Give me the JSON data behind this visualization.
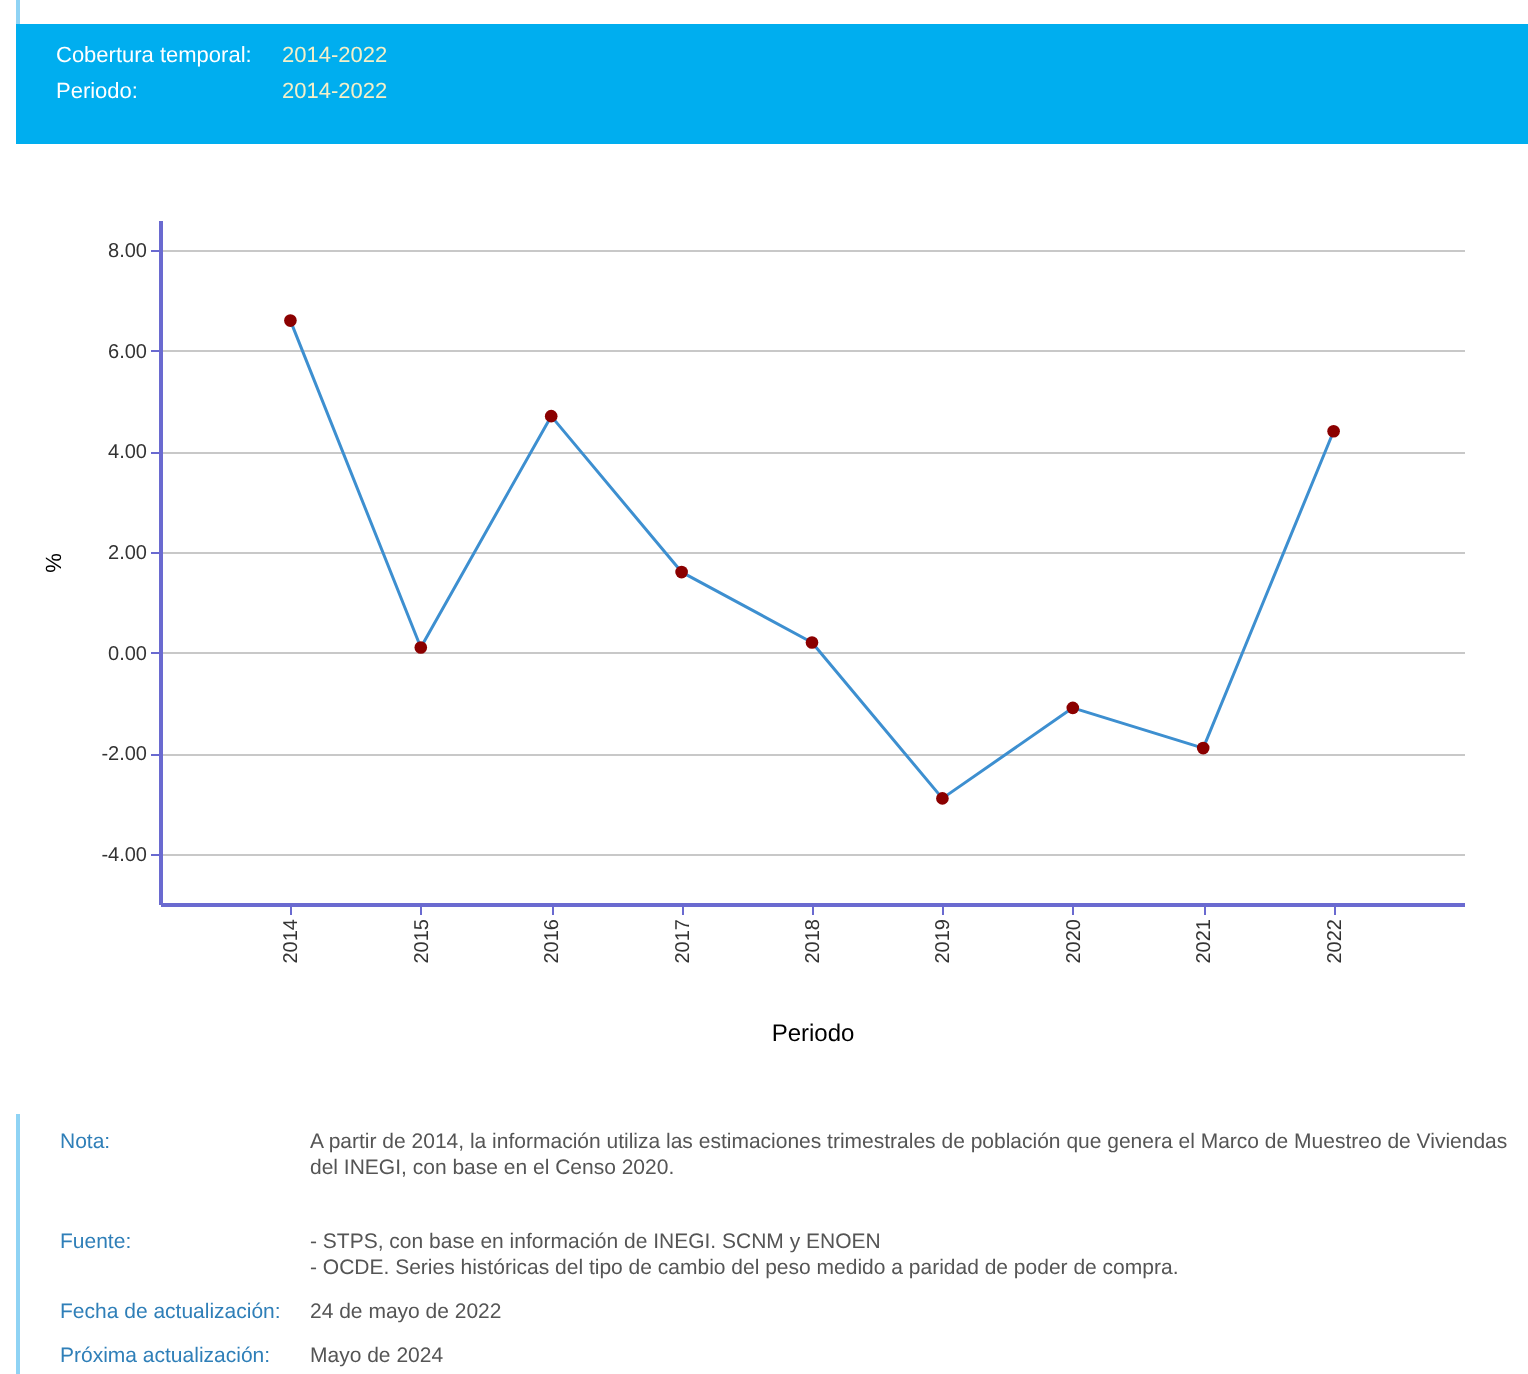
{
  "chart_data": {
    "type": "line",
    "xlabel": "Periodo",
    "ylabel": "%",
    "categories": [
      "2014",
      "2015",
      "2016",
      "2017",
      "2018",
      "2019",
      "2020",
      "2021",
      "2022"
    ],
    "series": [
      {
        "color": "#3d8fd0",
        "values": [
          6.6,
          0.1,
          4.7,
          1.6,
          0.2,
          -2.9,
          -1.1,
          -1.9,
          4.4
        ]
      }
    ],
    "ylim": [
      -5,
      8.6
    ],
    "yticks": [
      {
        "value": -4,
        "label": "-4.00"
      },
      {
        "value": -2,
        "label": "-2.00"
      },
      {
        "value": 0,
        "label": "0.00"
      },
      {
        "value": 2,
        "label": "2.00"
      },
      {
        "value": 4,
        "label": "4.00"
      },
      {
        "value": 6,
        "label": "6.00"
      },
      {
        "value": 8,
        "label": "8.00"
      }
    ],
    "grid": "y",
    "marker": "circle",
    "line_style": "solid",
    "annotations": [
      "Cobertura temporal: 2014-2022",
      "Periodo: 2014-2022",
      "Nota: A partir de 2014, la información utiliza las estimaciones trimestrales de población que genera el Marco de Muestreo de Viviendas del INEGI, con base en el Censo 2020.",
      "Fuente: - STPS, con base en información de INEGI. SCNM y ENOEN\n- OCDE. Series históricas del tipo de cambio del peso medido a paridad de poder de compra.",
      "Fecha de actualización: 24 de mayo de 2022",
      "Próxima actualización: Mayo de 2024"
    ]
  }
}
